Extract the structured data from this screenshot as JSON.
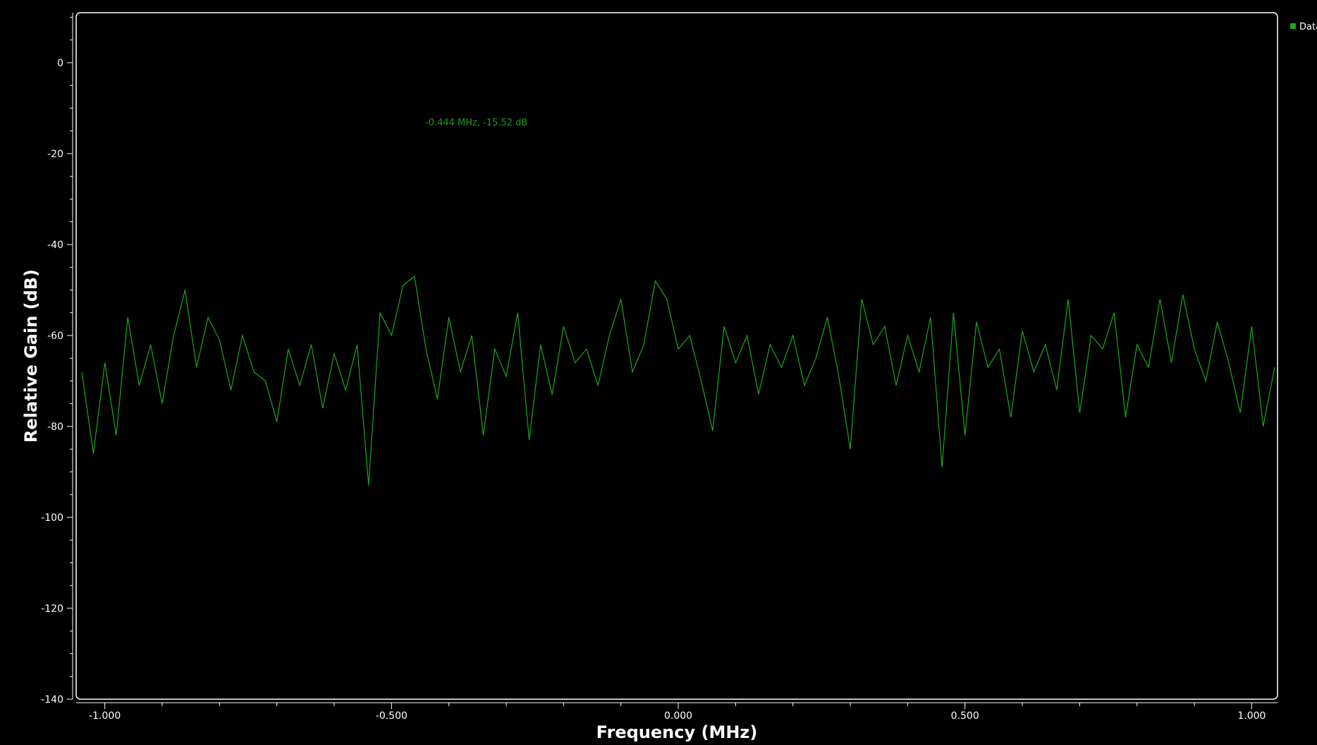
{
  "chart_data": {
    "type": "line",
    "xlabel": "Frequency (MHz)",
    "ylabel": "Relative Gain (dB)",
    "xlim": [
      -1.05,
      1.045
    ],
    "ylim": [
      -140,
      11
    ],
    "x_ticks": [
      -1.0,
      -0.5,
      0.0,
      0.5,
      1.0
    ],
    "x_tick_labels": [
      "-1.000",
      "-0.500",
      "0.000",
      "0.500",
      "1.000"
    ],
    "y_ticks": [
      0,
      -20,
      -40,
      -60,
      -80,
      -100,
      -120,
      -140
    ],
    "y_tick_labels": [
      "0",
      "-20",
      "-40",
      "-60",
      "-80",
      "-100",
      "-120",
      "-140"
    ],
    "grid": false,
    "legend": {
      "position": "top-right",
      "entries": [
        "Data"
      ]
    },
    "marker_readout": "-0.444 MHz, -15.52 dB",
    "colors": {
      "background": "#000000",
      "frame": "#ffffff",
      "trace": "#1aa81a",
      "marker_text": "#1f9a1f"
    },
    "series": [
      {
        "name": "Data",
        "color": "#1aa81a",
        "x": [
          -1.04,
          -1.02,
          -1.0,
          -0.98,
          -0.96,
          -0.94,
          -0.92,
          -0.9,
          -0.88,
          -0.86,
          -0.84,
          -0.82,
          -0.8,
          -0.78,
          -0.76,
          -0.74,
          -0.72,
          -0.7,
          -0.68,
          -0.66,
          -0.64,
          -0.62,
          -0.6,
          -0.58,
          -0.56,
          -0.54,
          -0.52,
          -0.5,
          -0.48,
          -0.46,
          -0.44,
          -0.42,
          -0.4,
          -0.38,
          -0.36,
          -0.34,
          -0.32,
          -0.3,
          -0.28,
          -0.26,
          -0.24,
          -0.22,
          -0.2,
          -0.18,
          -0.16,
          -0.14,
          -0.12,
          -0.1,
          -0.08,
          -0.06,
          -0.04,
          -0.02,
          0.0,
          0.02,
          0.04,
          0.06,
          0.08,
          0.1,
          0.12,
          0.14,
          0.16,
          0.18,
          0.2,
          0.22,
          0.24,
          0.26,
          0.28,
          0.3,
          0.32,
          0.34,
          0.36,
          0.38,
          0.4,
          0.42,
          0.44,
          0.46,
          0.48,
          0.5,
          0.52,
          0.54,
          0.56,
          0.58,
          0.6,
          0.62,
          0.64,
          0.66,
          0.68,
          0.7,
          0.72,
          0.74,
          0.76,
          0.78,
          0.8,
          0.82,
          0.84,
          0.86,
          0.88,
          0.9,
          0.92,
          0.94,
          0.96,
          0.98,
          1.0,
          1.02,
          1.04
        ],
        "values": [
          -68,
          -86,
          -66,
          -82,
          -56,
          -71,
          -62,
          -75,
          -60,
          -50,
          -67,
          -56,
          -61,
          -72,
          -60,
          -68,
          -70,
          -79,
          -63,
          -71,
          -62,
          -76,
          -64,
          -72,
          -62,
          -93,
          -55,
          -60,
          -49,
          -47,
          -63,
          -74,
          -56,
          -68,
          -60,
          -82,
          -63,
          -69,
          -55,
          -83,
          -62,
          -73,
          -58,
          -66,
          -63,
          -71,
          -60,
          -52,
          -68,
          -62,
          -48,
          -52,
          -63,
          -60,
          -70,
          -81,
          -58,
          -66,
          -60,
          -73,
          -62,
          -67,
          -60,
          -71,
          -65,
          -56,
          -69,
          -85,
          -52,
          -62,
          -58,
          -71,
          -60,
          -68,
          -56,
          -89,
          -55,
          -82,
          -57,
          -67,
          -63,
          -78,
          -59,
          -68,
          -62,
          -72,
          -52,
          -77,
          -60,
          -63,
          -55,
          -78,
          -62,
          -67,
          -52,
          -66,
          -51,
          -63,
          -70,
          -57,
          -66,
          -77,
          -58,
          -80,
          -67
        ]
      }
    ]
  }
}
